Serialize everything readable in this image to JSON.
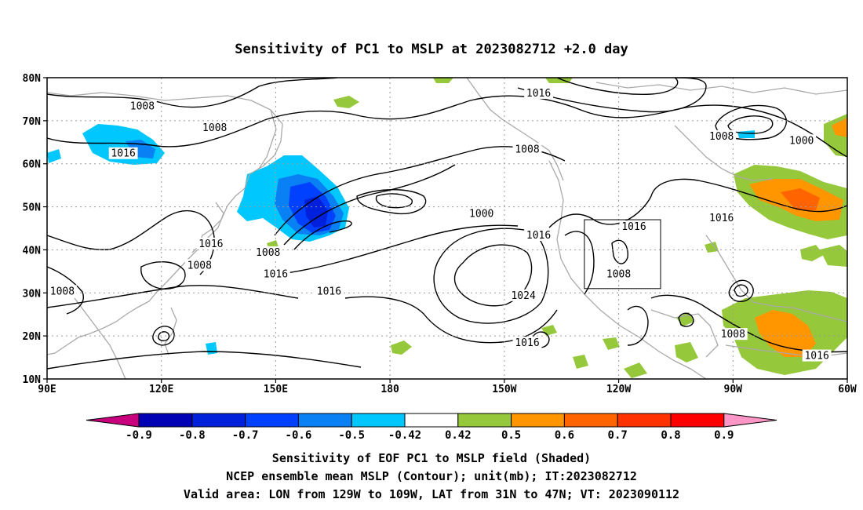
{
  "title": "Sensitivity of PC1 to MSLP at 2023082712 +2.0 day",
  "map": {
    "lat_labels": [
      "80N",
      "70N",
      "60N",
      "50N",
      "40N",
      "30N",
      "20N",
      "10N"
    ],
    "lon_labels": [
      "90E",
      "120E",
      "150E",
      "180",
      "150W",
      "120W",
      "90W",
      "60W"
    ],
    "lon_range": [
      90,
      300
    ],
    "lat_range": [
      10,
      80
    ],
    "gridlines": "dotted",
    "valid_box": {
      "lon": [
        231,
        251
      ],
      "lat": [
        31,
        47
      ]
    }
  },
  "contour_labels": [
    {
      "text": "1008",
      "lon": 115,
      "lat": 73
    },
    {
      "text": "1008",
      "lon": 134,
      "lat": 68
    },
    {
      "text": "1016",
      "lon": 110,
      "lat": 62
    },
    {
      "text": "1016",
      "lon": 219,
      "lat": 76
    },
    {
      "text": "1008",
      "lon": 216,
      "lat": 63
    },
    {
      "text": "1008",
      "lon": 267,
      "lat": 66
    },
    {
      "text": "1000",
      "lon": 288,
      "lat": 65
    },
    {
      "text": "1016",
      "lon": 244,
      "lat": 45
    },
    {
      "text": "1016",
      "lon": 267,
      "lat": 47
    },
    {
      "text": "1000",
      "lon": 204,
      "lat": 48
    },
    {
      "text": "1016",
      "lon": 219,
      "lat": 43
    },
    {
      "text": "1016",
      "lon": 133,
      "lat": 41
    },
    {
      "text": "1008",
      "lon": 130,
      "lat": 36
    },
    {
      "text": "1008",
      "lon": 148,
      "lat": 39
    },
    {
      "text": "1016",
      "lon": 150,
      "lat": 34
    },
    {
      "text": "1008",
      "lon": 94,
      "lat": 30
    },
    {
      "text": "1016",
      "lon": 164,
      "lat": 30
    },
    {
      "text": "1008",
      "lon": 240,
      "lat": 34
    },
    {
      "text": "1024",
      "lon": 215,
      "lat": 29
    },
    {
      "text": "1016",
      "lon": 216,
      "lat": 18
    },
    {
      "text": "1008",
      "lon": 270,
      "lat": 20
    },
    {
      "text": "1016",
      "lon": 292,
      "lat": 15
    }
  ],
  "colorbar": {
    "labels": [
      "-0.9",
      "-0.8",
      "-0.7",
      "-0.6",
      "-0.5",
      "-0.42",
      "0.42",
      "0.5",
      "0.6",
      "0.7",
      "0.8",
      "0.9"
    ],
    "colors": [
      "#0000b4",
      "#0020dc",
      "#0040ff",
      "#0a80f5",
      "#00c8ff",
      "#ffffff",
      "#96c83c",
      "#ff9600",
      "#ff6400",
      "#ff3200",
      "#ff0000"
    ],
    "low_end_color": "#c8007d",
    "high_end_color": "#ff96c8"
  },
  "captions": [
    "Sensitivity of EOF PC1 to MSLP field (Shaded)",
    "NCEP ensemble mean MSLP (Contour); unit(mb); IT:2023082712",
    "Valid area: LON from 129W to 109W, LAT from 31N to 47N; VT: 2023090112"
  ]
}
